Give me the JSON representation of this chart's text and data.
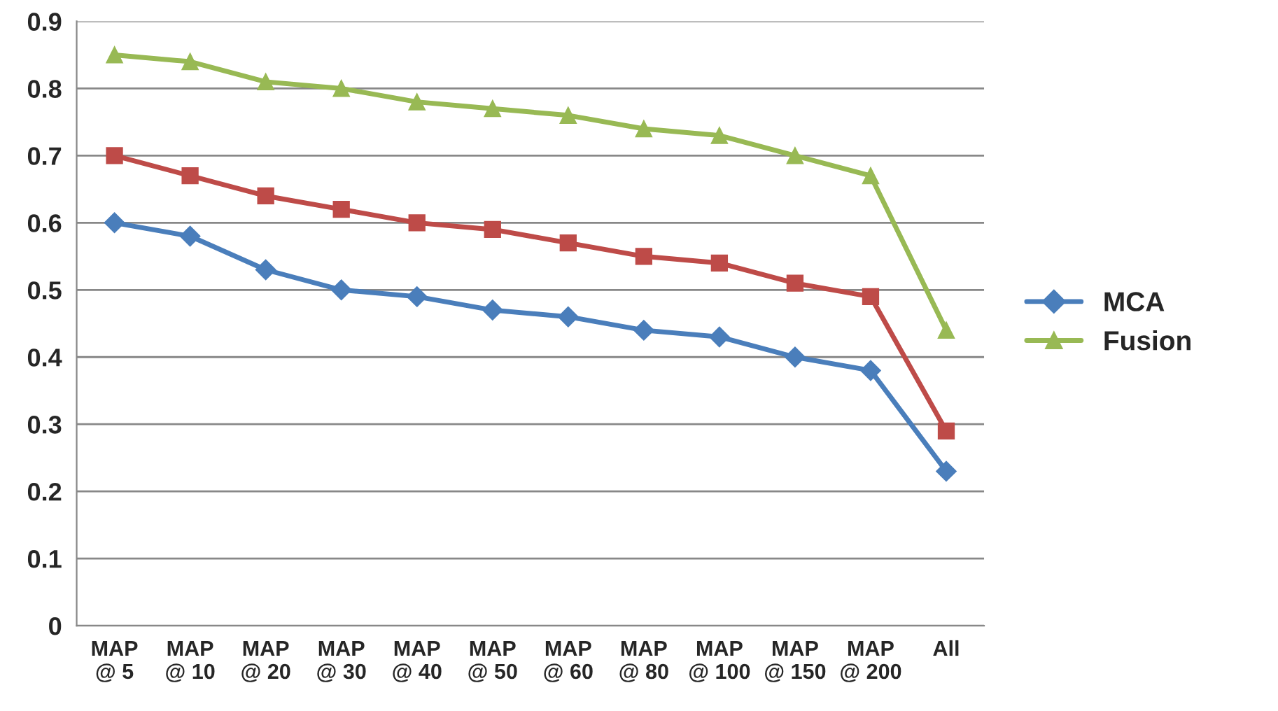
{
  "chart_data": {
    "type": "line",
    "categories": [
      "MAP\n@ 5",
      "MAP\n@ 10",
      "MAP\n@ 20",
      "MAP\n@ 30",
      "MAP\n@ 40",
      "MAP\n@ 50",
      "MAP\n@ 60",
      "MAP\n@ 80",
      "MAP\n@ 100",
      "MAP\n@ 150",
      "MAP\n@ 200",
      "All"
    ],
    "series": [
      {
        "name": "MCA",
        "color": "#4a7ebb",
        "marker": "diamond",
        "values": [
          0.6,
          0.58,
          0.53,
          0.5,
          0.49,
          0.47,
          0.46,
          0.44,
          0.43,
          0.4,
          0.38,
          0.23
        ]
      },
      {
        "color": "#be4b48",
        "marker": "square",
        "values": [
          0.7,
          0.67,
          0.64,
          0.62,
          0.6,
          0.59,
          0.57,
          0.55,
          0.54,
          0.51,
          0.49,
          0.29
        ]
      },
      {
        "name": "Fusion",
        "color": "#98b954",
        "marker": "triangle",
        "values": [
          0.85,
          0.84,
          0.81,
          0.8,
          0.78,
          0.77,
          0.76,
          0.74,
          0.73,
          0.7,
          0.67,
          0.44
        ]
      }
    ],
    "ylim": [
      0,
      0.9
    ],
    "yticks": [
      0,
      0.1,
      0.2,
      0.3,
      0.4,
      0.5,
      0.6,
      0.7,
      0.8,
      0.9
    ],
    "grid": "y",
    "legend": "right",
    "line_style": "solid"
  }
}
